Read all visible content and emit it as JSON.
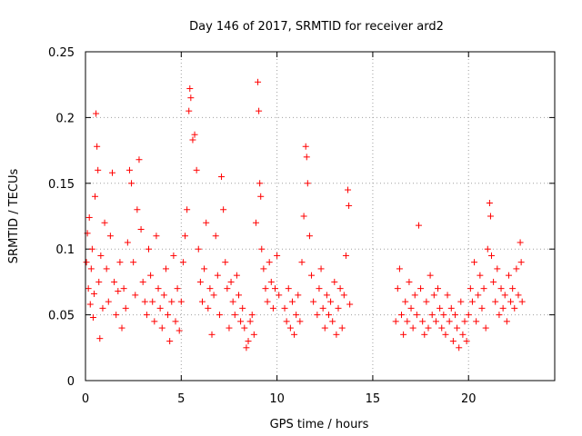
{
  "chart_data": {
    "type": "scatter",
    "title": "Day 146 of 2017, SRMTID for receiver ard2",
    "xlabel": "GPS time / hours",
    "ylabel": "SRMTID / TECUs",
    "xlim": [
      0,
      24.5
    ],
    "ylim": [
      0,
      0.25
    ],
    "x_ticks": [
      0,
      5,
      10,
      15,
      20
    ],
    "y_ticks": [
      0,
      0.05,
      0.1,
      0.15,
      0.2,
      0.25
    ],
    "y_tick_labels": [
      "0",
      "0.05",
      "0.1",
      "0.15",
      "0.2",
      "0.25"
    ],
    "grid": true,
    "marker": "+",
    "color": "#ff0000",
    "series": [
      {
        "name": "ard2",
        "points": [
          [
            0.05,
            0.09
          ],
          [
            0.1,
            0.112
          ],
          [
            0.15,
            0.07
          ],
          [
            0.2,
            0.124
          ],
          [
            0.25,
            0.058
          ],
          [
            0.3,
            0.085
          ],
          [
            0.35,
            0.1
          ],
          [
            0.4,
            0.048
          ],
          [
            0.45,
            0.066
          ],
          [
            0.5,
            0.14
          ],
          [
            0.55,
            0.203
          ],
          [
            0.6,
            0.178
          ],
          [
            0.65,
            0.16
          ],
          [
            0.7,
            0.075
          ],
          [
            0.75,
            0.032
          ],
          [
            0.8,
            0.095
          ],
          [
            0.9,
            0.055
          ],
          [
            1.0,
            0.12
          ],
          [
            1.1,
            0.085
          ],
          [
            1.2,
            0.06
          ],
          [
            1.3,
            0.11
          ],
          [
            1.4,
            0.158
          ],
          [
            1.5,
            0.075
          ],
          [
            1.6,
            0.05
          ],
          [
            1.7,
            0.068
          ],
          [
            1.8,
            0.09
          ],
          [
            1.9,
            0.04
          ],
          [
            2.0,
            0.07
          ],
          [
            2.1,
            0.055
          ],
          [
            2.2,
            0.105
          ],
          [
            2.3,
            0.16
          ],
          [
            2.4,
            0.15
          ],
          [
            2.5,
            0.09
          ],
          [
            2.6,
            0.065
          ],
          [
            2.7,
            0.13
          ],
          [
            2.8,
            0.168
          ],
          [
            2.9,
            0.115
          ],
          [
            3.0,
            0.075
          ],
          [
            3.1,
            0.06
          ],
          [
            3.2,
            0.05
          ],
          [
            3.3,
            0.1
          ],
          [
            3.4,
            0.08
          ],
          [
            3.5,
            0.06
          ],
          [
            3.6,
            0.045
          ],
          [
            3.7,
            0.11
          ],
          [
            3.8,
            0.07
          ],
          [
            3.9,
            0.055
          ],
          [
            4.0,
            0.04
          ],
          [
            4.1,
            0.065
          ],
          [
            4.2,
            0.085
          ],
          [
            4.3,
            0.05
          ],
          [
            4.4,
            0.03
          ],
          [
            4.5,
            0.06
          ],
          [
            4.6,
            0.095
          ],
          [
            4.7,
            0.045
          ],
          [
            4.8,
            0.07
          ],
          [
            4.9,
            0.038
          ],
          [
            5.0,
            0.06
          ],
          [
            5.1,
            0.09
          ],
          [
            5.2,
            0.11
          ],
          [
            5.3,
            0.13
          ],
          [
            5.4,
            0.205
          ],
          [
            5.45,
            0.222
          ],
          [
            5.5,
            0.215
          ],
          [
            5.6,
            0.183
          ],
          [
            5.7,
            0.187
          ],
          [
            5.8,
            0.16
          ],
          [
            5.9,
            0.1
          ],
          [
            6.0,
            0.075
          ],
          [
            6.1,
            0.06
          ],
          [
            6.2,
            0.085
          ],
          [
            6.3,
            0.12
          ],
          [
            6.4,
            0.055
          ],
          [
            6.5,
            0.07
          ],
          [
            6.6,
            0.035
          ],
          [
            6.7,
            0.065
          ],
          [
            6.8,
            0.11
          ],
          [
            6.9,
            0.08
          ],
          [
            7.0,
            0.05
          ],
          [
            7.1,
            0.155
          ],
          [
            7.2,
            0.13
          ],
          [
            7.3,
            0.09
          ],
          [
            7.4,
            0.07
          ],
          [
            7.5,
            0.04
          ],
          [
            7.6,
            0.075
          ],
          [
            7.7,
            0.06
          ],
          [
            7.8,
            0.05
          ],
          [
            7.9,
            0.08
          ],
          [
            8.0,
            0.065
          ],
          [
            8.1,
            0.045
          ],
          [
            8.2,
            0.055
          ],
          [
            8.3,
            0.04
          ],
          [
            8.4,
            0.025
          ],
          [
            8.5,
            0.03
          ],
          [
            8.6,
            0.045
          ],
          [
            8.7,
            0.05
          ],
          [
            8.8,
            0.035
          ],
          [
            8.9,
            0.12
          ],
          [
            9.0,
            0.227
          ],
          [
            9.05,
            0.205
          ],
          [
            9.1,
            0.15
          ],
          [
            9.15,
            0.14
          ],
          [
            9.2,
            0.1
          ],
          [
            9.3,
            0.085
          ],
          [
            9.4,
            0.07
          ],
          [
            9.5,
            0.06
          ],
          [
            9.6,
            0.09
          ],
          [
            9.7,
            0.075
          ],
          [
            9.8,
            0.055
          ],
          [
            9.9,
            0.07
          ],
          [
            10.0,
            0.095
          ],
          [
            10.1,
            0.065
          ],
          [
            10.4,
            0.055
          ],
          [
            10.5,
            0.045
          ],
          [
            10.6,
            0.07
          ],
          [
            10.7,
            0.04
          ],
          [
            10.8,
            0.06
          ],
          [
            10.9,
            0.035
          ],
          [
            11.0,
            0.05
          ],
          [
            11.1,
            0.065
          ],
          [
            11.2,
            0.045
          ],
          [
            11.3,
            0.09
          ],
          [
            11.4,
            0.125
          ],
          [
            11.5,
            0.178
          ],
          [
            11.55,
            0.17
          ],
          [
            11.6,
            0.15
          ],
          [
            11.7,
            0.11
          ],
          [
            11.8,
            0.08
          ],
          [
            11.9,
            0.06
          ],
          [
            12.1,
            0.05
          ],
          [
            12.2,
            0.07
          ],
          [
            12.3,
            0.085
          ],
          [
            12.4,
            0.055
          ],
          [
            12.5,
            0.04
          ],
          [
            12.6,
            0.065
          ],
          [
            12.7,
            0.05
          ],
          [
            12.8,
            0.06
          ],
          [
            12.9,
            0.045
          ],
          [
            13.0,
            0.075
          ],
          [
            13.1,
            0.035
          ],
          [
            13.2,
            0.055
          ],
          [
            13.3,
            0.07
          ],
          [
            13.4,
            0.04
          ],
          [
            13.5,
            0.065
          ],
          [
            13.6,
            0.095
          ],
          [
            13.7,
            0.145
          ],
          [
            13.75,
            0.133
          ],
          [
            13.8,
            0.058
          ],
          [
            16.2,
            0.045
          ],
          [
            16.3,
            0.07
          ],
          [
            16.4,
            0.085
          ],
          [
            16.5,
            0.05
          ],
          [
            16.6,
            0.035
          ],
          [
            16.7,
            0.06
          ],
          [
            16.8,
            0.045
          ],
          [
            16.9,
            0.075
          ],
          [
            17.0,
            0.055
          ],
          [
            17.1,
            0.04
          ],
          [
            17.2,
            0.065
          ],
          [
            17.3,
            0.05
          ],
          [
            17.4,
            0.118
          ],
          [
            17.5,
            0.07
          ],
          [
            17.6,
            0.045
          ],
          [
            17.7,
            0.035
          ],
          [
            17.8,
            0.06
          ],
          [
            17.9,
            0.04
          ],
          [
            18.0,
            0.08
          ],
          [
            18.1,
            0.05
          ],
          [
            18.2,
            0.065
          ],
          [
            18.3,
            0.045
          ],
          [
            18.4,
            0.07
          ],
          [
            18.5,
            0.055
          ],
          [
            18.6,
            0.04
          ],
          [
            18.7,
            0.05
          ],
          [
            18.8,
            0.035
          ],
          [
            18.9,
            0.065
          ],
          [
            19.0,
            0.045
          ],
          [
            19.1,
            0.055
          ],
          [
            19.2,
            0.03
          ],
          [
            19.3,
            0.05
          ],
          [
            19.4,
            0.04
          ],
          [
            19.5,
            0.025
          ],
          [
            19.6,
            0.06
          ],
          [
            19.7,
            0.035
          ],
          [
            19.8,
            0.045
          ],
          [
            19.9,
            0.03
          ],
          [
            20.0,
            0.05
          ],
          [
            20.1,
            0.07
          ],
          [
            20.2,
            0.06
          ],
          [
            20.3,
            0.09
          ],
          [
            20.4,
            0.045
          ],
          [
            20.5,
            0.065
          ],
          [
            20.6,
            0.08
          ],
          [
            20.7,
            0.055
          ],
          [
            20.8,
            0.07
          ],
          [
            20.9,
            0.04
          ],
          [
            21.0,
            0.1
          ],
          [
            21.1,
            0.135
          ],
          [
            21.15,
            0.125
          ],
          [
            21.2,
            0.095
          ],
          [
            21.3,
            0.075
          ],
          [
            21.4,
            0.06
          ],
          [
            21.5,
            0.085
          ],
          [
            21.6,
            0.05
          ],
          [
            21.7,
            0.07
          ],
          [
            21.8,
            0.055
          ],
          [
            21.9,
            0.065
          ],
          [
            22.0,
            0.045
          ],
          [
            22.1,
            0.08
          ],
          [
            22.2,
            0.06
          ],
          [
            22.3,
            0.07
          ],
          [
            22.4,
            0.055
          ],
          [
            22.5,
            0.085
          ],
          [
            22.6,
            0.065
          ],
          [
            22.7,
            0.105
          ],
          [
            22.75,
            0.09
          ],
          [
            22.8,
            0.06
          ]
        ]
      }
    ]
  }
}
